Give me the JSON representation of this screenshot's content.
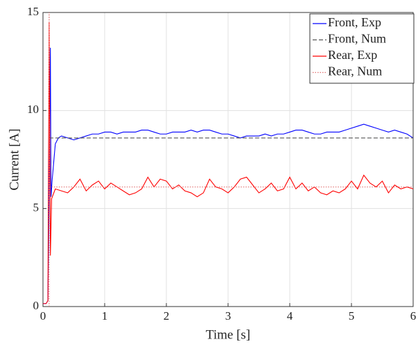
{
  "chart_data": {
    "type": "line",
    "xlabel": "Time [s]",
    "ylabel": "Current [A]",
    "xlim": [
      0,
      6
    ],
    "xticks": [
      0,
      1,
      2,
      3,
      4,
      5,
      6
    ],
    "ylim": [
      0,
      15
    ],
    "yticks": [
      0,
      5,
      10,
      15
    ],
    "grid": true,
    "legend": "upper right",
    "series": [
      {
        "name": "Front, Exp",
        "color": "#0000ff",
        "style": "solid",
        "x": [
          0,
          0.05,
          0.08,
          0.1,
          0.12,
          0.13,
          0.15,
          0.2,
          0.25,
          0.3,
          0.4,
          0.5,
          0.6,
          0.7,
          0.8,
          0.9,
          1.0,
          1.1,
          1.2,
          1.3,
          1.4,
          1.5,
          1.6,
          1.7,
          1.8,
          1.9,
          2.0,
          2.1,
          2.2,
          2.3,
          2.4,
          2.5,
          2.6,
          2.7,
          2.8,
          2.9,
          3.0,
          3.1,
          3.2,
          3.3,
          3.4,
          3.5,
          3.6,
          3.7,
          3.8,
          3.9,
          4.0,
          4.1,
          4.2,
          4.3,
          4.4,
          4.5,
          4.6,
          4.7,
          4.8,
          4.9,
          5.0,
          5.1,
          5.2,
          5.3,
          5.4,
          5.5,
          5.6,
          5.7,
          5.8,
          5.9,
          6.0
        ],
        "values": [
          0.15,
          0.15,
          0.3,
          6.0,
          13.2,
          5.6,
          6.5,
          8.3,
          8.6,
          8.7,
          8.6,
          8.5,
          8.6,
          8.7,
          8.8,
          8.8,
          8.9,
          8.9,
          8.8,
          8.9,
          8.9,
          8.9,
          9.0,
          9.0,
          8.9,
          8.8,
          8.8,
          8.9,
          8.9,
          8.9,
          9.0,
          8.9,
          9.0,
          9.0,
          8.9,
          8.8,
          8.8,
          8.7,
          8.6,
          8.7,
          8.7,
          8.7,
          8.8,
          8.7,
          8.8,
          8.8,
          8.9,
          9.0,
          9.0,
          8.9,
          8.8,
          8.8,
          8.9,
          8.9,
          8.9,
          9.0,
          9.1,
          9.2,
          9.3,
          9.2,
          9.1,
          9.0,
          8.9,
          9.0,
          8.9,
          8.8,
          8.6
        ]
      },
      {
        "name": "Front, Num",
        "color": "#555555",
        "style": "dashed",
        "x": [
          0.1,
          6
        ],
        "values": [
          8.6,
          8.6
        ]
      },
      {
        "name": "Rear, Exp",
        "color": "#ff0000",
        "style": "solid",
        "x": [
          0,
          0.05,
          0.08,
          0.1,
          0.12,
          0.14,
          0.2,
          0.3,
          0.4,
          0.5,
          0.6,
          0.7,
          0.8,
          0.9,
          1.0,
          1.1,
          1.2,
          1.3,
          1.4,
          1.5,
          1.6,
          1.7,
          1.8,
          1.9,
          2.0,
          2.1,
          2.2,
          2.3,
          2.4,
          2.5,
          2.6,
          2.7,
          2.8,
          2.9,
          3.0,
          3.1,
          3.2,
          3.3,
          3.4,
          3.5,
          3.6,
          3.7,
          3.8,
          3.9,
          4.0,
          4.1,
          4.2,
          4.3,
          4.4,
          4.5,
          4.6,
          4.7,
          4.8,
          4.9,
          5.0,
          5.1,
          5.2,
          5.3,
          5.4,
          5.5,
          5.6,
          5.7,
          5.8,
          5.9,
          6.0
        ],
        "values": [
          0.15,
          0.15,
          0.3,
          14.5,
          2.6,
          5.5,
          6.0,
          5.9,
          5.8,
          6.1,
          6.5,
          5.9,
          6.2,
          6.4,
          6.0,
          6.3,
          6.1,
          5.9,
          5.7,
          5.8,
          6.0,
          6.6,
          6.1,
          6.5,
          6.4,
          6.0,
          6.2,
          5.9,
          5.8,
          5.6,
          5.8,
          6.5,
          6.1,
          6.0,
          5.8,
          6.1,
          6.5,
          6.6,
          6.2,
          5.8,
          6.0,
          6.3,
          5.9,
          6.0,
          6.6,
          6.0,
          6.3,
          5.9,
          6.1,
          5.8,
          5.7,
          5.9,
          5.8,
          6.0,
          6.4,
          6.0,
          6.7,
          6.3,
          6.1,
          6.4,
          5.8,
          6.2,
          6.0,
          6.1,
          6.0
        ]
      },
      {
        "name": "Rear, Num",
        "color": "#e07070",
        "style": "dotted",
        "x": [
          0.1,
          0.1,
          0.1,
          6
        ],
        "values": [
          0,
          15,
          6.1,
          6.1
        ]
      }
    ]
  }
}
